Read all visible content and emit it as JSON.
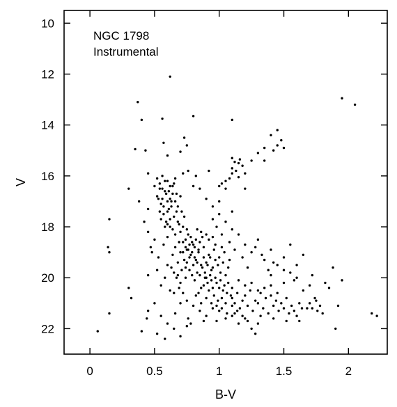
{
  "chart_data": {
    "type": "scatter",
    "xlabel": "B-V",
    "ylabel": "V",
    "annotations": [
      "NGC 1798",
      "Instrumental"
    ],
    "xlim": [
      -0.2,
      2.3
    ],
    "ylim": [
      23,
      9.5
    ],
    "y_inverted": true,
    "grid": false,
    "legend": "none",
    "x_ticks": [
      0,
      0.5,
      1,
      1.5,
      2
    ],
    "x_tick_labels": [
      "0",
      "0.5",
      "1",
      "1.5",
      "2"
    ],
    "y_ticks": [
      10,
      12,
      14,
      16,
      18,
      20,
      22
    ],
    "y_tick_labels": [
      "10",
      "12",
      "14",
      "16",
      "18",
      "20",
      "22"
    ],
    "marker_color": "#000000",
    "points": [
      [
        0.62,
        12.1
      ],
      [
        1.95,
        12.95
      ],
      [
        2.05,
        13.2
      ],
      [
        0.37,
        13.1
      ],
      [
        0.4,
        13.8
      ],
      [
        0.56,
        13.75
      ],
      [
        0.8,
        13.65
      ],
      [
        1.1,
        13.8
      ],
      [
        1.45,
        14.2
      ],
      [
        1.4,
        14.4
      ],
      [
        1.3,
        15.1
      ],
      [
        1.35,
        14.9
      ],
      [
        1.45,
        14.8
      ],
      [
        1.42,
        15.0
      ],
      [
        1.48,
        14.6
      ],
      [
        1.5,
        14.9
      ],
      [
        1.35,
        15.4
      ],
      [
        0.73,
        14.5
      ],
      [
        0.75,
        14.8
      ],
      [
        0.57,
        14.7
      ],
      [
        0.35,
        14.95
      ],
      [
        0.43,
        15.0
      ],
      [
        0.6,
        15.2
      ],
      [
        0.7,
        15.05
      ],
      [
        0.76,
        15.8
      ],
      [
        0.72,
        15.9
      ],
      [
        0.82,
        16.0
      ],
      [
        0.8,
        16.4
      ],
      [
        0.92,
        15.8
      ],
      [
        1.1,
        15.3
      ],
      [
        1.12,
        15.45
      ],
      [
        1.15,
        15.5
      ],
      [
        1.18,
        15.6
      ],
      [
        1.1,
        15.7
      ],
      [
        1.13,
        15.8
      ],
      [
        1.2,
        15.9
      ],
      [
        1.15,
        16.05
      ],
      [
        1.08,
        16.1
      ],
      [
        1.16,
        15.35
      ],
      [
        1.1,
        15.9
      ],
      [
        1.05,
        16.2
      ],
      [
        1.02,
        16.3
      ],
      [
        1.0,
        16.4
      ],
      [
        1.05,
        16.5
      ],
      [
        1.25,
        15.4
      ],
      [
        0.45,
        15.9
      ],
      [
        0.5,
        16.4
      ],
      [
        0.3,
        16.5
      ],
      [
        0.38,
        17.0
      ],
      [
        0.45,
        17.3
      ],
      [
        0.9,
        16.9
      ],
      [
        0.95,
        17.2
      ],
      [
        1.0,
        17.0
      ],
      [
        1.1,
        17.4
      ],
      [
        1.2,
        16.5
      ],
      [
        0.85,
        16.5
      ],
      [
        0.52,
        16.1
      ],
      [
        0.54,
        16.3
      ],
      [
        0.56,
        16.0
      ],
      [
        0.58,
        16.6
      ],
      [
        0.6,
        16.2
      ],
      [
        0.62,
        16.9
      ],
      [
        0.64,
        16.4
      ],
      [
        0.52,
        16.8
      ],
      [
        0.55,
        17.1
      ],
      [
        0.57,
        17.5
      ],
      [
        0.59,
        17.8
      ],
      [
        0.61,
        17.3
      ],
      [
        0.63,
        17.0
      ],
      [
        0.65,
        17.6
      ],
      [
        0.67,
        16.7
      ],
      [
        0.69,
        17.9
      ],
      [
        0.7,
        18.2
      ],
      [
        0.72,
        18.0
      ],
      [
        0.74,
        18.5
      ],
      [
        0.54,
        17.4
      ],
      [
        0.56,
        16.5
      ],
      [
        0.6,
        17.0
      ],
      [
        0.58,
        16.2
      ],
      [
        0.66,
        16.1
      ],
      [
        0.62,
        17.7
      ],
      [
        0.68,
        17.2
      ],
      [
        0.64,
        18.1
      ],
      [
        0.71,
        17.4
      ],
      [
        0.53,
        16.9
      ],
      [
        0.57,
        17.2
      ],
      [
        0.62,
        16.4
      ],
      [
        0.59,
        16.7
      ],
      [
        0.55,
        17.7
      ],
      [
        0.6,
        17.9
      ],
      [
        0.66,
        18.3
      ],
      [
        0.7,
        16.8
      ],
      [
        0.73,
        17.6
      ],
      [
        0.63,
        17.2
      ],
      [
        0.61,
        16.6
      ],
      [
        0.58,
        18.0
      ],
      [
        0.65,
        16.3
      ],
      [
        0.54,
        16.5
      ],
      [
        0.69,
        18.6
      ],
      [
        0.67,
        17.4
      ],
      [
        0.56,
        16.9
      ],
      [
        0.6,
        17.4
      ],
      [
        0.62,
        18.0
      ],
      [
        0.64,
        16.7
      ],
      [
        0.66,
        17.0
      ],
      [
        0.68,
        17.8
      ],
      [
        0.74,
        18.8
      ],
      [
        0.76,
        18.9
      ],
      [
        0.78,
        19.1
      ],
      [
        0.8,
        18.7
      ],
      [
        0.82,
        19.3
      ],
      [
        0.84,
        19.0
      ],
      [
        0.86,
        19.5
      ],
      [
        0.75,
        19.4
      ],
      [
        0.77,
        19.7
      ],
      [
        0.79,
        19.9
      ],
      [
        0.81,
        19.2
      ],
      [
        0.83,
        19.8
      ],
      [
        0.85,
        18.6
      ],
      [
        0.87,
        19.6
      ],
      [
        0.89,
        20.0
      ],
      [
        0.72,
        19.0
      ],
      [
        0.74,
        19.6
      ],
      [
        0.78,
        18.4
      ],
      [
        0.8,
        19.5
      ],
      [
        0.76,
        18.3
      ],
      [
        0.82,
        18.5
      ],
      [
        0.84,
        18.9
      ],
      [
        0.86,
        18.2
      ],
      [
        0.88,
        18.8
      ],
      [
        0.9,
        19.4
      ],
      [
        0.92,
        19.1
      ],
      [
        0.94,
        19.7
      ],
      [
        0.77,
        19.2
      ],
      [
        0.79,
        18.6
      ],
      [
        0.81,
        20.1
      ],
      [
        0.83,
        18.1
      ],
      [
        0.85,
        19.9
      ],
      [
        0.87,
        18.4
      ],
      [
        0.75,
        18.1
      ],
      [
        0.73,
        19.3
      ],
      [
        0.79,
        19.0
      ],
      [
        0.81,
        18.8
      ],
      [
        0.77,
        18.7
      ],
      [
        0.83,
        19.4
      ],
      [
        0.75,
        18.9
      ],
      [
        0.88,
        20.3
      ],
      [
        0.9,
        20.0
      ],
      [
        0.92,
        20.5
      ],
      [
        0.94,
        20.1
      ],
      [
        0.96,
        20.7
      ],
      [
        0.98,
        20.2
      ],
      [
        1.0,
        20.4
      ],
      [
        1.02,
        20.8
      ],
      [
        1.04,
        20.3
      ],
      [
        1.06,
        20.6
      ],
      [
        0.93,
        19.9
      ],
      [
        0.97,
        20.0
      ],
      [
        0.99,
        20.9
      ],
      [
        1.01,
        20.1
      ],
      [
        1.03,
        20.5
      ],
      [
        1.05,
        21.0
      ],
      [
        1.07,
        20.2
      ],
      [
        1.09,
        20.7
      ],
      [
        0.95,
        20.4
      ],
      [
        0.91,
        20.2
      ],
      [
        0.89,
        19.8
      ],
      [
        0.95,
        19.6
      ],
      [
        0.97,
        19.3
      ],
      [
        0.99,
        19.5
      ],
      [
        1.01,
        19.8
      ],
      [
        1.03,
        19.4
      ],
      [
        1.05,
        19.9
      ],
      [
        0.93,
        19.2
      ],
      [
        1.07,
        19.6
      ],
      [
        0.91,
        19.5
      ],
      [
        1.1,
        20.8
      ],
      [
        1.12,
        21.0
      ],
      [
        1.14,
        20.6
      ],
      [
        1.16,
        21.2
      ],
      [
        1.18,
        20.9
      ],
      [
        1.2,
        20.7
      ],
      [
        1.22,
        21.1
      ],
      [
        1.24,
        20.5
      ],
      [
        1.26,
        21.3
      ],
      [
        1.28,
        20.9
      ],
      [
        1.3,
        21.0
      ],
      [
        1.32,
        20.6
      ],
      [
        1.34,
        21.2
      ],
      [
        1.36,
        20.8
      ],
      [
        1.38,
        21.4
      ],
      [
        1.4,
        20.7
      ],
      [
        1.42,
        21.1
      ],
      [
        1.44,
        20.9
      ],
      [
        1.46,
        21.3
      ],
      [
        1.48,
        21.0
      ],
      [
        1.5,
        21.2
      ],
      [
        1.52,
        20.8
      ],
      [
        1.54,
        21.4
      ],
      [
        1.56,
        21.1
      ],
      [
        1.58,
        21.3
      ],
      [
        1.6,
        21.5
      ],
      [
        1.62,
        21.0
      ],
      [
        1.64,
        21.2
      ],
      [
        1.1,
        20.4
      ],
      [
        1.2,
        20.3
      ],
      [
        1.3,
        20.5
      ],
      [
        1.25,
        20.2
      ],
      [
        1.35,
        20.4
      ],
      [
        1.15,
        20.1
      ],
      [
        1.4,
        20.3
      ],
      [
        1.45,
        20.6
      ],
      [
        1.0,
        21.3
      ],
      [
        1.1,
        21.5
      ],
      [
        1.2,
        21.6
      ],
      [
        1.3,
        21.8
      ],
      [
        1.7,
        21.0
      ],
      [
        1.75,
        20.9
      ],
      [
        1.72,
        21.2
      ],
      [
        1.78,
        21.1
      ],
      [
        1.76,
        21.3
      ],
      [
        1.74,
        20.8
      ],
      [
        1.8,
        21.4
      ],
      [
        1.68,
        21.2
      ],
      [
        1.82,
        20.2
      ],
      [
        1.85,
        20.4
      ],
      [
        1.88,
        19.6
      ],
      [
        1.6,
        20.0
      ],
      [
        1.55,
        19.8
      ],
      [
        1.45,
        19.5
      ],
      [
        1.5,
        19.7
      ],
      [
        1.4,
        19.9
      ],
      [
        1.35,
        19.3
      ],
      [
        1.25,
        19.0
      ],
      [
        1.2,
        18.7
      ],
      [
        1.15,
        18.3
      ],
      [
        1.1,
        18.1
      ],
      [
        1.05,
        17.8
      ],
      [
        1.0,
        17.5
      ],
      [
        0.95,
        17.7
      ],
      [
        1.3,
        18.5
      ],
      [
        1.4,
        18.9
      ],
      [
        1.5,
        19.2
      ],
      [
        1.6,
        19.5
      ],
      [
        1.65,
        20.5
      ],
      [
        1.58,
        20.1
      ],
      [
        1.38,
        19.7
      ],
      [
        1.42,
        19.4
      ],
      [
        1.33,
        19.1
      ],
      [
        1.28,
        18.8
      ],
      [
        1.22,
        19.6
      ],
      [
        1.18,
        19.2
      ],
      [
        1.12,
        18.9
      ],
      [
        1.08,
        18.6
      ],
      [
        1.02,
        18.3
      ],
      [
        0.98,
        18.0
      ],
      [
        0.6,
        19.5
      ],
      [
        0.65,
        19.8
      ],
      [
        0.7,
        20.2
      ],
      [
        0.72,
        20.6
      ],
      [
        0.75,
        20.9
      ],
      [
        0.8,
        21.1
      ],
      [
        0.85,
        21.3
      ],
      [
        0.9,
        21.5
      ],
      [
        0.95,
        21.2
      ],
      [
        0.7,
        21.0
      ],
      [
        0.62,
        20.5
      ],
      [
        0.58,
        20.0
      ],
      [
        0.66,
        21.4
      ],
      [
        0.76,
        21.6
      ],
      [
        0.82,
        20.7
      ],
      [
        0.86,
        20.4
      ],
      [
        0.74,
        20.0
      ],
      [
        0.68,
        19.9
      ],
      [
        0.78,
        21.8
      ],
      [
        0.88,
        21.7
      ],
      [
        0.55,
        20.3
      ],
      [
        0.52,
        19.7
      ],
      [
        0.5,
        18.5
      ],
      [
        0.48,
        19.0
      ],
      [
        0.45,
        18.2
      ],
      [
        0.42,
        17.8
      ],
      [
        0.47,
        18.8
      ],
      [
        0.53,
        19.2
      ],
      [
        0.57,
        18.7
      ],
      [
        0.6,
        18.4
      ],
      [
        0.5,
        21.0
      ],
      [
        0.55,
        21.5
      ],
      [
        0.6,
        21.8
      ],
      [
        0.45,
        21.3
      ],
      [
        0.65,
        22.0
      ],
      [
        0.58,
        22.4
      ],
      [
        0.52,
        22.2
      ],
      [
        0.4,
        22.1
      ],
      [
        0.7,
        22.3
      ],
      [
        0.75,
        21.9
      ],
      [
        0.98,
        21.7
      ],
      [
        1.05,
        21.6
      ],
      [
        1.15,
        21.8
      ],
      [
        1.25,
        22.0
      ],
      [
        1.12,
        21.4
      ],
      [
        1.22,
        21.7
      ],
      [
        1.32,
        21.5
      ],
      [
        1.42,
        21.6
      ],
      [
        1.52,
        21.7
      ],
      [
        1.62,
        21.7
      ],
      [
        0.15,
        17.7
      ],
      [
        0.14,
        18.8
      ],
      [
        0.15,
        19.0
      ],
      [
        0.3,
        20.4
      ],
      [
        0.32,
        20.8
      ],
      [
        0.45,
        19.9
      ],
      [
        0.44,
        21.6
      ],
      [
        0.15,
        21.4
      ],
      [
        0.06,
        22.1
      ],
      [
        1.9,
        22.0
      ],
      [
        2.18,
        21.4
      ],
      [
        2.22,
        21.5
      ],
      [
        1.95,
        20.1
      ],
      [
        1.28,
        22.2
      ],
      [
        1.72,
        19.9
      ],
      [
        1.92,
        21.1
      ],
      [
        1.55,
        18.7
      ],
      [
        1.65,
        19.1
      ],
      [
        1.7,
        20.3
      ],
      [
        1.5,
        20.2
      ],
      [
        0.96,
        18.9
      ],
      [
        1.0,
        19.2
      ],
      [
        0.92,
        18.5
      ],
      [
        0.97,
        18.7
      ],
      [
        1.04,
        19.0
      ],
      [
        1.08,
        19.3
      ],
      [
        0.9,
        18.3
      ],
      [
        0.95,
        18.4
      ],
      [
        0.88,
        19.2
      ],
      [
        1.02,
        18.8
      ],
      [
        0.84,
        20.6
      ],
      [
        0.86,
        21.0
      ],
      [
        0.9,
        20.8
      ],
      [
        0.94,
        21.0
      ],
      [
        0.98,
        21.1
      ],
      [
        1.02,
        21.2
      ],
      [
        1.06,
        21.4
      ],
      [
        1.1,
        21.1
      ],
      [
        1.14,
        21.3
      ],
      [
        1.18,
        21.5
      ],
      [
        0.7,
        19.0
      ],
      [
        0.68,
        19.4
      ],
      [
        0.66,
        18.8
      ],
      [
        0.64,
        19.1
      ],
      [
        0.72,
        18.6
      ],
      [
        0.63,
        19.6
      ],
      [
        0.71,
        19.7
      ],
      [
        0.69,
        20.4
      ],
      [
        0.67,
        20.0
      ],
      [
        0.65,
        20.6
      ]
    ]
  }
}
